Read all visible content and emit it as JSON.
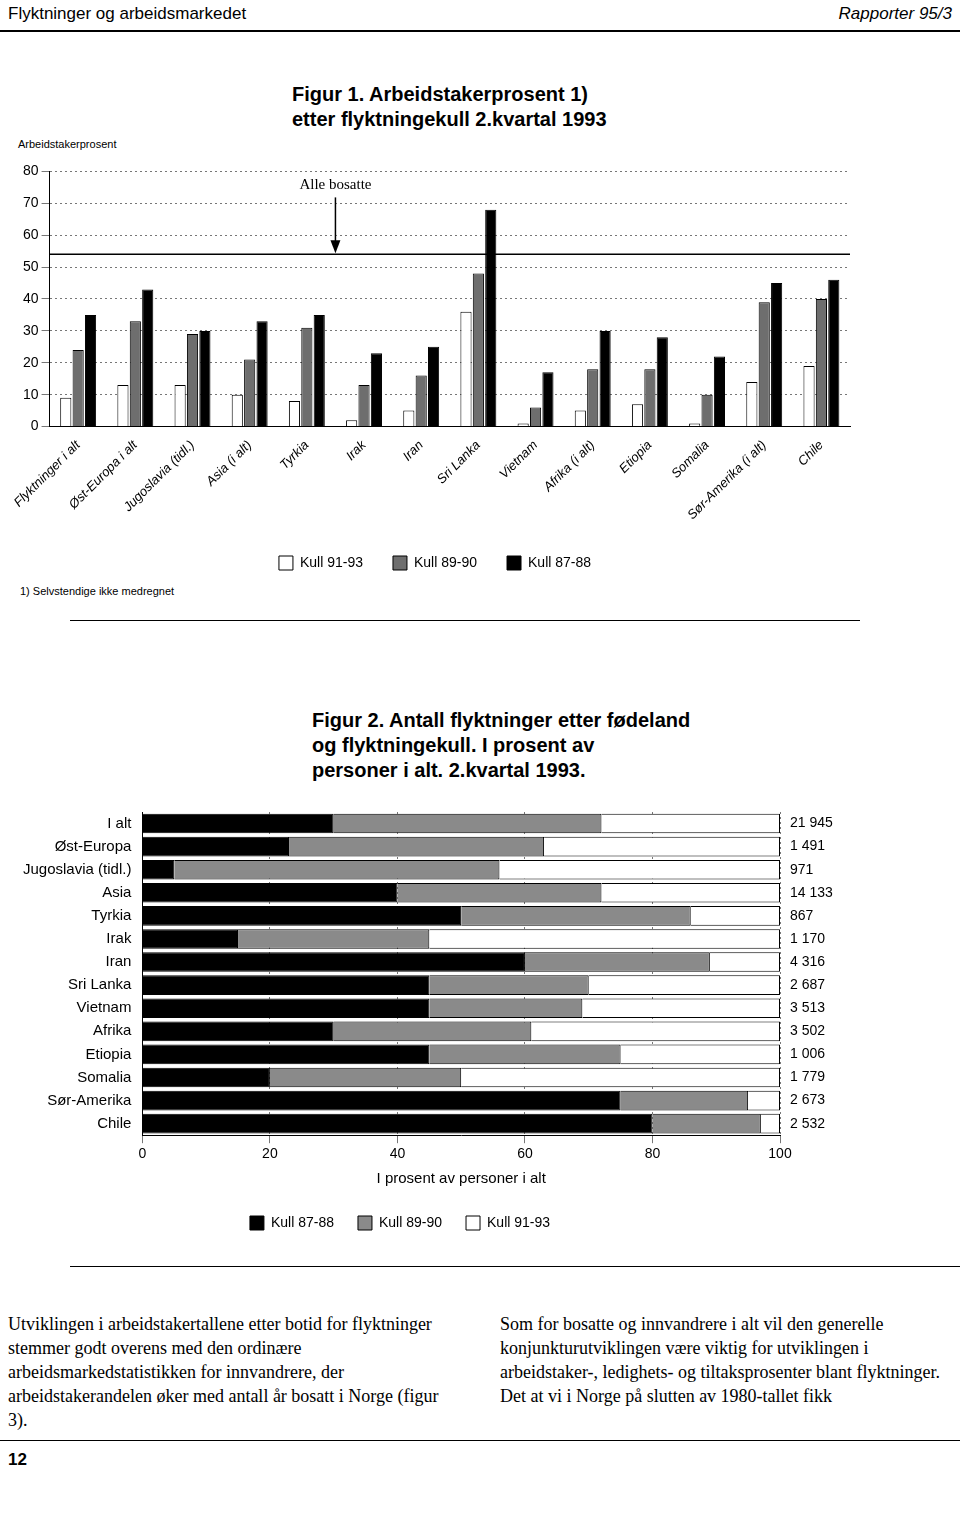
{
  "header": {
    "left": "Flyktninger og arbeidsmarkedet",
    "right": "Rapporter 95/3"
  },
  "chart_data": [
    {
      "type": "bar",
      "title": [
        "Figur 1. Arbeidstakerprosent 1)",
        "etter flyktningekull 2.kvartal 1993"
      ],
      "y_label": "Arbeidstakerprosent",
      "footnote": "1) Selvstendige ikke medregnet",
      "annotation": {
        "label": "Alle bosatte",
        "value": 54
      },
      "categories": [
        "Flyktninger i alt",
        "Øst-Europa i alt",
        "Jugoslavia (tidl.)",
        "Asia (i alt)",
        "Tyrkia",
        "Irak",
        "Iran",
        "Sri Lanka",
        "Vietnam",
        "Afrika (i alt)",
        "Etiopia",
        "Somalia",
        "Sør-Amerika (i alt)",
        "Chile"
      ],
      "series": [
        {
          "name": "Kull 91-93",
          "color": "#ffffff",
          "values": [
            9,
            13,
            13,
            10,
            8,
            2,
            5,
            36,
            1,
            5,
            7,
            1,
            14,
            19
          ]
        },
        {
          "name": "Kull 89-90",
          "color": "#6e6e6e",
          "values": [
            24,
            33,
            29,
            21,
            31,
            13,
            16,
            48,
            6,
            18,
            18,
            10,
            39,
            40
          ]
        },
        {
          "name": "Kull 87-88",
          "color": "#000000",
          "values": [
            35,
            43,
            30,
            33,
            35,
            23,
            25,
            68,
            17,
            30,
            28,
            22,
            45,
            46
          ]
        }
      ],
      "ylim": [
        0,
        80
      ],
      "yticks": [
        0,
        10,
        20,
        30,
        40,
        50,
        60,
        70,
        80
      ],
      "grid": true,
      "legend": "bottom"
    },
    {
      "type": "bar",
      "orientation": "horizontal",
      "stacked": true,
      "title": [
        "Figur 2. Antall flyktninger etter fødeland",
        "og flyktningekull. I prosent av",
        "personer i alt. 2.kvartal 1993."
      ],
      "x_label": "I prosent av personer i alt",
      "categories": [
        "I alt",
        "Øst-Europa",
        "Jugoslavia (tidl.)",
        "Asia",
        "Tyrkia",
        "Irak",
        "Iran",
        "Sri Lanka",
        "Vietnam",
        "Afrika",
        "Etiopia",
        "Somalia",
        "Sør-Amerika",
        "Chile"
      ],
      "series": [
        {
          "name": "Kull 87-88",
          "color": "#000000",
          "values": [
            30,
            23,
            5,
            40,
            50,
            15,
            60,
            45,
            45,
            30,
            45,
            20,
            75,
            80
          ]
        },
        {
          "name": "Kull 89-90",
          "color": "#8a8a8a",
          "values": [
            42,
            40,
            51,
            32,
            36,
            30,
            29,
            25,
            24,
            31,
            30,
            30,
            20,
            17
          ]
        },
        {
          "name": "Kull 91-93",
          "color": "#ffffff",
          "values": [
            28,
            37,
            44,
            28,
            14,
            55,
            11,
            30,
            31,
            39,
            25,
            50,
            5,
            3
          ]
        }
      ],
      "totals": [
        {
          "value": 21945,
          "label": "21 945"
        },
        {
          "value": 1491,
          "label": "1 491"
        },
        {
          "value": 971,
          "label": "971"
        },
        {
          "value": 14133,
          "label": "14 133"
        },
        {
          "value": 867,
          "label": "867"
        },
        {
          "value": 1170,
          "label": "1 170"
        },
        {
          "value": 4316,
          "label": "4 316"
        },
        {
          "value": 2687,
          "label": "2 687"
        },
        {
          "value": 3513,
          "label": "3 513"
        },
        {
          "value": 3502,
          "label": "3 502"
        },
        {
          "value": 1006,
          "label": "1 006"
        },
        {
          "value": 1779,
          "label": "1 779"
        },
        {
          "value": 2673,
          "label": "2 673"
        },
        {
          "value": 2532,
          "label": "2 532"
        }
      ],
      "xlim": [
        0,
        100
      ],
      "xticks": [
        0,
        20,
        40,
        60,
        80,
        100
      ],
      "grid": true,
      "legend": "bottom"
    }
  ],
  "body": {
    "columns": [
      "Utviklingen i arbeidstakertallene etter botid for flyktninger stemmer godt overens med den ordinære arbeidsmarkedstatistikken for innvandrere, der arbeidstakerandelen øker med antall år bosatt i Norge (figur 3).",
      "Som for bosatte og innvandrere i alt vil den generelle konjunkturutviklingen være viktig for utviklingen i arbeidstaker-, ledighets- og tiltaksprosenter blant flyktninger. Det at vi i Norge på slutten av 1980-tallet fikk"
    ]
  },
  "footer": {
    "page": 12
  }
}
